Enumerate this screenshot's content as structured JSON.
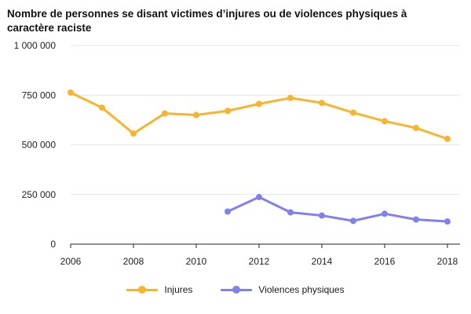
{
  "chart_data": {
    "type": "line",
    "title": "Nombre de personnes se disant victimes d’injures ou de violences physiques à caractère raciste",
    "xlabel": "",
    "ylabel": "",
    "x": [
      2006,
      2007,
      2008,
      2009,
      2010,
      2011,
      2012,
      2013,
      2014,
      2015,
      2016,
      2017,
      2018
    ],
    "x_ticks": [
      2006,
      2008,
      2010,
      2012,
      2014,
      2016,
      2018
    ],
    "x_tick_labels": [
      "2006",
      "2008",
      "2010",
      "2012",
      "2014",
      "2016",
      "2018"
    ],
    "xlim": [
      2006,
      2018.4
    ],
    "ylim": [
      0,
      1000000
    ],
    "y_ticks": [
      0,
      250000,
      500000,
      750000,
      1000000
    ],
    "y_tick_labels": [
      "0",
      "250 000",
      "500 000",
      "750 000",
      "1 000 000"
    ],
    "grid": "horizontal",
    "legend_position": "bottom-center",
    "series": [
      {
        "name": "Injures",
        "color": "#F9B42D",
        "values": [
          763000,
          687000,
          557000,
          658000,
          650000,
          671000,
          706000,
          736000,
          711000,
          662000,
          619000,
          585000,
          530000
        ]
      },
      {
        "name": "Violences physiques",
        "color": "#8080F0",
        "values": [
          null,
          null,
          null,
          null,
          null,
          164000,
          237000,
          160000,
          144000,
          117000,
          153000,
          124000,
          114000
        ]
      }
    ]
  }
}
